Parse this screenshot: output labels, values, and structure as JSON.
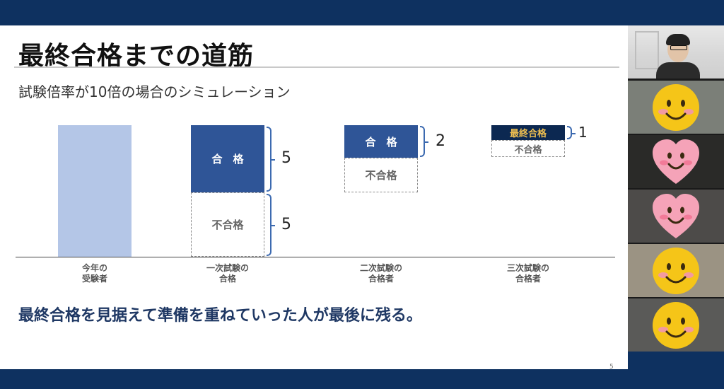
{
  "slide": {
    "title": "最終合格までの道筋",
    "subtitle": "試験倍率が10倍の場合のシミュレーション",
    "message": "最終合格を見据えて準備を重ねていった人が最後に残る。",
    "page_number": "5"
  },
  "chart_data": {
    "type": "bar",
    "categories": [
      [
        "今年の",
        "受験者"
      ],
      [
        "一次試験の",
        "合格"
      ],
      [
        "二次試験の",
        "合格者"
      ],
      [
        "三次試験の",
        "合格者"
      ]
    ],
    "stages": [
      {
        "total": 10
      },
      {
        "segments": [
          {
            "label": "合　格",
            "value": 5,
            "kind": "pass"
          },
          {
            "label": "不合格",
            "value": 5,
            "kind": "fail"
          }
        ]
      },
      {
        "segments": [
          {
            "label": "合　格",
            "value": 2,
            "kind": "pass"
          },
          {
            "label": "不合格",
            "value": 3,
            "kind": "fail"
          }
        ]
      },
      {
        "segments": [
          {
            "label": "最終合格",
            "value": 1,
            "kind": "final"
          },
          {
            "label": "不合格",
            "value": 1,
            "kind": "fail"
          }
        ]
      }
    ],
    "bracket_values": [
      "5",
      "5",
      "2",
      "1"
    ],
    "colors": {
      "applicants": "#b4c6e7",
      "pass": "#2f5597",
      "final": "#0c2851",
      "final_text": "#f0c050",
      "bracket": "#3c6ab0"
    }
  },
  "video_panel": {
    "participants": [
      {
        "type": "camera",
        "icon": "presenter-video"
      },
      {
        "type": "avatar",
        "icon": "smiley-round-icon",
        "color": "#f5c518"
      },
      {
        "type": "avatar",
        "icon": "smiley-heart-icon",
        "color": "#f5a3b8"
      },
      {
        "type": "avatar",
        "icon": "smiley-heart-icon",
        "color": "#f5a3b8"
      },
      {
        "type": "avatar",
        "icon": "smiley-round-icon",
        "color": "#f5c518"
      },
      {
        "type": "avatar",
        "icon": "smiley-round-icon",
        "color": "#f5c518"
      }
    ]
  }
}
